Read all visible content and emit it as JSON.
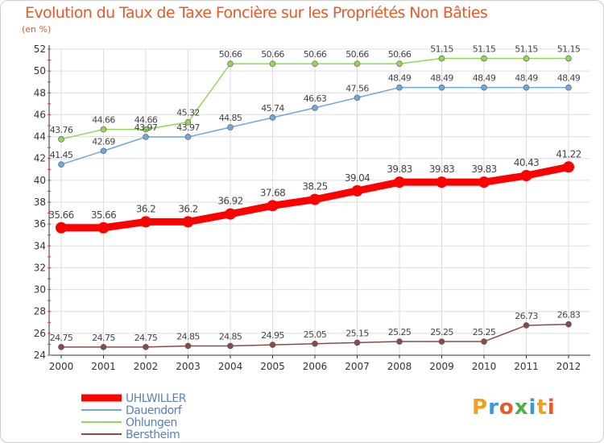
{
  "chart_data": {
    "type": "line",
    "title": "Evolution du Taux de Taxe Foncière sur les Propriétés Non Bâties",
    "subtitle": "(en %)",
    "x": [
      "2000",
      "2001",
      "2002",
      "2003",
      "2004",
      "2005",
      "2006",
      "2007",
      "2008",
      "2009",
      "2010",
      "2011",
      "2012"
    ],
    "yticks": [
      24,
      26,
      28,
      30,
      32,
      34,
      36,
      38,
      40,
      42,
      44,
      46,
      48,
      50,
      52
    ],
    "ylim": [
      24,
      52
    ],
    "grid": true,
    "legend_position": "bottom-left",
    "series": [
      {
        "name": "UHLWILLER",
        "color": "#ff0000",
        "values": [
          35.66,
          35.66,
          36.2,
          36.2,
          36.92,
          37.68,
          38.25,
          39.04,
          39.83,
          39.83,
          39.83,
          40.43,
          41.22
        ],
        "labels": [
          "35.66",
          "35.66",
          "36.2",
          "36.2",
          "36.92",
          "37.68",
          "38.25",
          "39.04",
          "39.83",
          "39.83",
          "39.83",
          "40.43",
          "41.22"
        ]
      },
      {
        "name": "Dauendorf",
        "color": "#6fa8dc",
        "values": [
          41.45,
          42.69,
          43.97,
          43.97,
          44.85,
          45.74,
          46.63,
          47.56,
          48.49,
          48.49,
          48.49,
          48.49,
          48.49
        ],
        "labels": [
          "41.45",
          "42.69",
          "43.97",
          "43.97",
          "44.85",
          "45.74",
          "46.63",
          "47.56",
          "48.49",
          "48.49",
          "48.49",
          "48.49",
          "48.49"
        ]
      },
      {
        "name": "Ohlungen",
        "color": "#93d45c",
        "values": [
          43.76,
          44.66,
          44.66,
          45.32,
          50.66,
          50.66,
          50.66,
          50.66,
          50.66,
          51.15,
          51.15,
          51.15,
          51.15
        ],
        "labels": [
          "43.76",
          "44.66",
          "44.66",
          "45.32",
          "50.66",
          "50.66",
          "50.66",
          "50.66",
          "50.66",
          "51.15",
          "51.15",
          "51.15",
          "51.15"
        ]
      },
      {
        "name": "Berstheim",
        "color": "#8b4a4a",
        "values": [
          24.75,
          24.75,
          24.75,
          24.85,
          24.85,
          24.95,
          25.05,
          25.15,
          25.25,
          25.25,
          25.25,
          26.73,
          26.83
        ],
        "labels": [
          "24.75",
          "24.75",
          "24.75",
          "24.85",
          "24.85",
          "24.95",
          "25.05",
          "25.15",
          "25.25",
          "25.25",
          "25.25",
          "26.73",
          "26.83"
        ]
      }
    ]
  },
  "logo": {
    "letters": [
      "P",
      "r",
      "o",
      "x",
      "i",
      "t",
      "i"
    ],
    "colors": [
      "#f0a020",
      "#3a9ad9",
      "#e85a2a",
      "#4db04a",
      "#3a9ad9",
      "#f0a020",
      "#e85a2a"
    ]
  }
}
